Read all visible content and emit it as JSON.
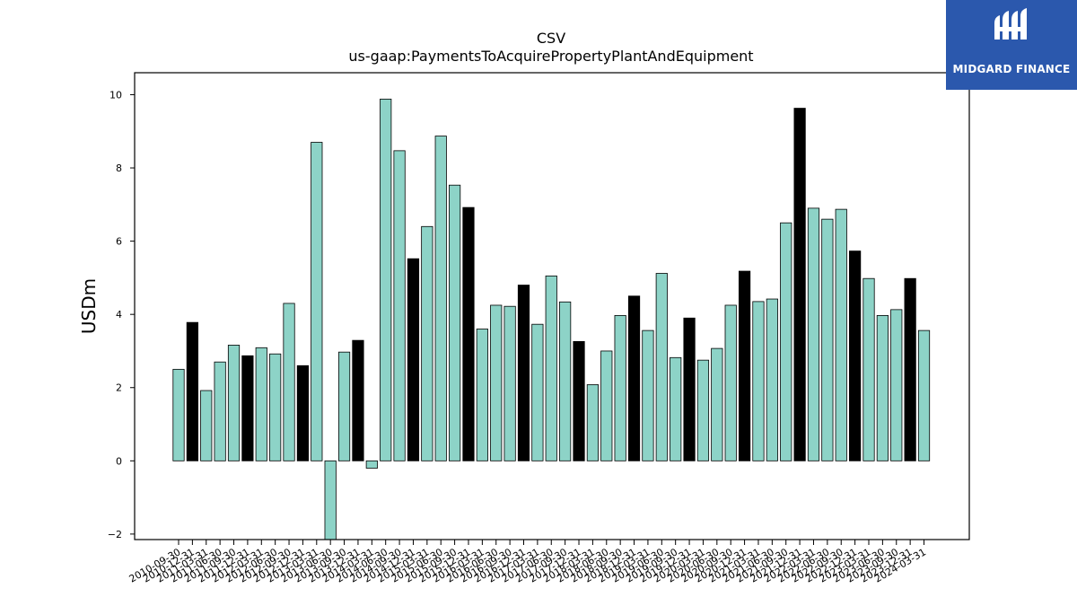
{
  "logo": {
    "text": "MIDGARD FINANCE",
    "color": "#2b58ad"
  },
  "chart_data": {
    "type": "bar",
    "title": "CSV",
    "subtitle": "us-gaap:PaymentsToAcquirePropertyPlantAndEquipment",
    "xlabel": "",
    "ylabel": "USDm",
    "ylim": [
      -2.15,
      10.6
    ],
    "yticks": [
      -2,
      0,
      2,
      4,
      6,
      8,
      10
    ],
    "grid": false,
    "legend": "none",
    "colors": {
      "quarter": "#8dd3c7",
      "year_end": "#000000",
      "edge": "#000000"
    },
    "categories": [
      "2010-09-30",
      "2010-12-31",
      "2011-03-31",
      "2011-06-30",
      "2011-09-30",
      "2011-12-31",
      "2012-03-31",
      "2012-06-30",
      "2012-09-30",
      "2012-12-31",
      "2013-03-31",
      "2013-06-30",
      "2013-09-30",
      "2013-12-31",
      "2014-03-31",
      "2014-06-30",
      "2014-09-30",
      "2014-12-31",
      "2015-03-31",
      "2015-06-30",
      "2015-09-30",
      "2015-12-31",
      "2016-03-31",
      "2016-06-30",
      "2016-09-30",
      "2016-12-31",
      "2017-03-31",
      "2017-06-30",
      "2017-09-30",
      "2017-12-31",
      "2018-03-31",
      "2018-06-30",
      "2018-09-30",
      "2018-12-31",
      "2019-03-31",
      "2019-06-30",
      "2019-09-30",
      "2019-12-31",
      "2020-03-31",
      "2020-06-30",
      "2020-09-30",
      "2020-12-31",
      "2021-03-31",
      "2021-06-30",
      "2021-09-30",
      "2021-12-31",
      "2022-03-31",
      "2022-06-30",
      "2022-09-30",
      "2022-12-31",
      "2023-03-31",
      "2023-06-30",
      "2023-09-30",
      "2023-12-31",
      "2024-03-31"
    ],
    "values": [
      2.5,
      3.78,
      1.92,
      2.7,
      3.16,
      2.87,
      3.09,
      2.92,
      4.3,
      2.6,
      8.7,
      -2.2,
      2.97,
      3.29,
      -0.2,
      9.88,
      8.47,
      5.52,
      6.4,
      8.87,
      7.53,
      6.92,
      3.6,
      4.25,
      4.22,
      4.8,
      3.73,
      5.05,
      4.34,
      3.26,
      2.08,
      3.0,
      3.97,
      4.5,
      3.56,
      5.12,
      2.82,
      3.9,
      2.75,
      3.07,
      4.25,
      5.18,
      4.35,
      4.42,
      6.5,
      9.63,
      6.9,
      6.6,
      6.87,
      5.73,
      4.98,
      3.97,
      4.13,
      4.98,
      3.56
    ],
    "year_end": [
      false,
      true,
      false,
      false,
      false,
      true,
      false,
      false,
      false,
      true,
      false,
      false,
      false,
      true,
      false,
      false,
      false,
      true,
      false,
      false,
      false,
      true,
      false,
      false,
      false,
      true,
      false,
      false,
      false,
      true,
      false,
      false,
      false,
      true,
      false,
      false,
      false,
      true,
      false,
      false,
      false,
      true,
      false,
      false,
      false,
      true,
      false,
      false,
      false,
      true,
      false,
      false,
      false,
      true,
      false
    ]
  }
}
